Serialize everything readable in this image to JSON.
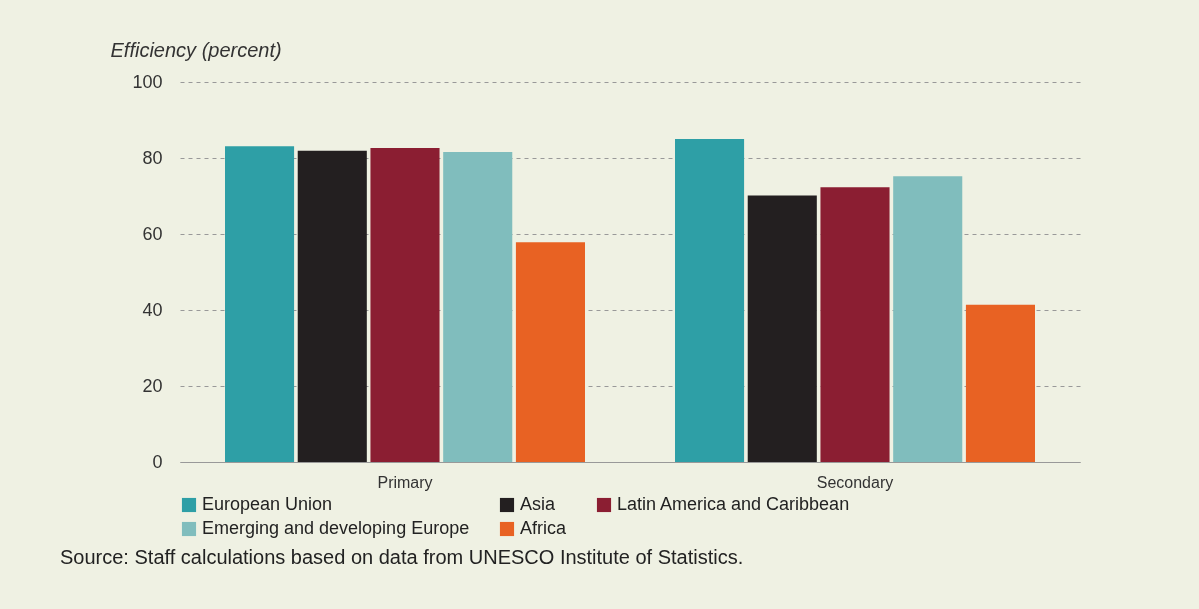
{
  "chart_data": {
    "type": "bar",
    "ylabel": "Efficiency (percent)",
    "categories": [
      "Primary",
      "Secondary"
    ],
    "series": [
      {
        "name": "European Union",
        "color": "#2e9fa6",
        "values": [
          83.1,
          85.0
        ]
      },
      {
        "name": "Asia",
        "color": "#231f20",
        "values": [
          81.9,
          70.1
        ]
      },
      {
        "name": "Latin America and Caribbean",
        "color": "#8b1e32",
        "values": [
          82.6,
          72.3
        ]
      },
      {
        "name": "Emerging and developing Europe",
        "color": "#80bdbd",
        "values": [
          81.6,
          75.2
        ]
      },
      {
        "name": "Africa",
        "color": "#e86223",
        "values": [
          57.8,
          41.4
        ]
      }
    ],
    "ylim": [
      0,
      100
    ],
    "yticks": [
      0,
      20,
      40,
      60,
      80,
      100
    ],
    "grid": "y",
    "legend": "bottom",
    "annotations": [
      "Source: Staff calculations based on data from UNESCO Institute of Statistics."
    ]
  }
}
